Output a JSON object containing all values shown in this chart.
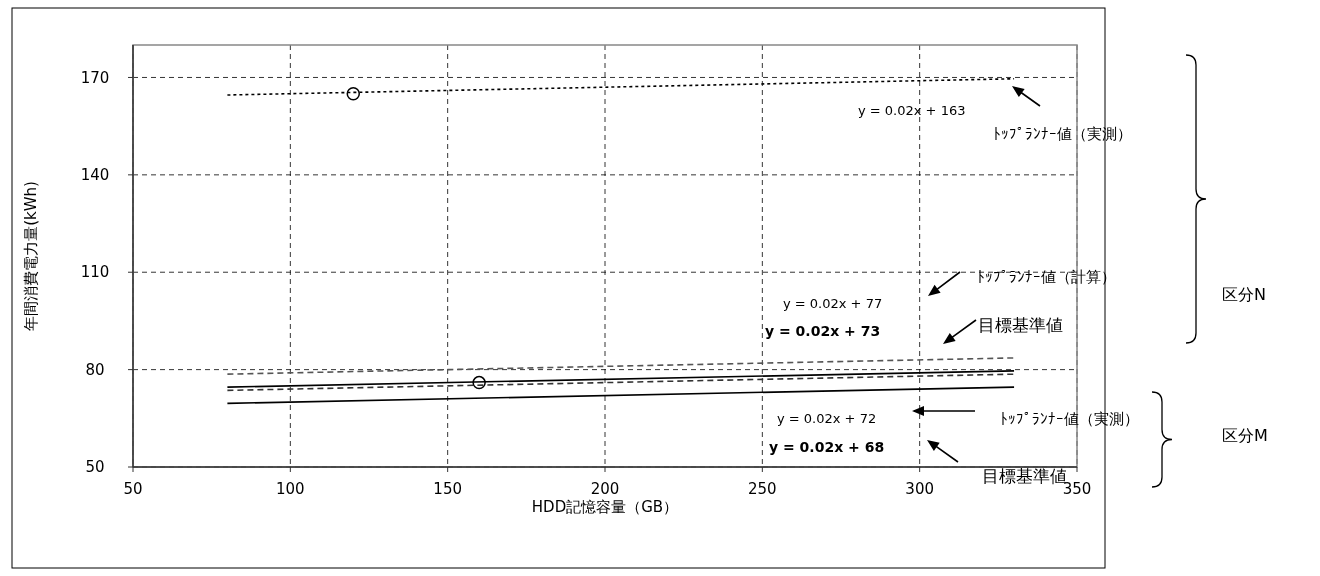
{
  "chart_data": {
    "type": "line",
    "xlabel": "HDD記憶容量（GB）",
    "ylabel": "年間消費電力量(kWh)",
    "xlim": [
      50,
      350
    ],
    "xticks": [
      50,
      100,
      150,
      200,
      250,
      300,
      350
    ],
    "ylim": [
      50,
      180
    ],
    "yticks": [
      50,
      80,
      110,
      140,
      170
    ],
    "grid": true,
    "series": [
      {
        "x": [
          80,
          330
        ],
        "values": [
          164.6,
          169.6
        ],
        "color": "#000000",
        "line_style": "dotted"
      },
      {
        "x": [
          80,
          330
        ],
        "values": [
          78.6,
          83.6
        ],
        "color": "#555555",
        "line_style": "dashed"
      },
      {
        "x": [
          80,
          330
        ],
        "values": [
          74.6,
          79.6
        ],
        "color": "#000000",
        "line_style": "solid"
      },
      {
        "x": [
          80,
          330
        ],
        "values": [
          73.6,
          78.6
        ],
        "color": "#333333",
        "line_style": "dashed"
      },
      {
        "x": [
          80,
          330
        ],
        "values": [
          69.6,
          74.6
        ],
        "color": "#000000",
        "line_style": "solid"
      },
      {
        "type": "scatter",
        "x": [
          120,
          160
        ],
        "values": [
          165,
          76
        ],
        "color": "#000000",
        "marker": "circle"
      }
    ],
    "annotations": [
      "y = 0.02x + 163",
      "ﾄｯﾌﾟﾗﾝﾅｰ値（実測）",
      "ﾄｯﾌﾟﾗﾝﾅｰ値（計算）",
      "y = 0.02x + 77",
      "y = 0.02x + 73",
      "目標基準値",
      "y = 0.02x + 72",
      "ﾄｯﾌﾟﾗﾝﾅｰ値（実測）",
      "y = 0.02x + 68",
      "目標基準値",
      "区分N",
      "区分M"
    ]
  }
}
